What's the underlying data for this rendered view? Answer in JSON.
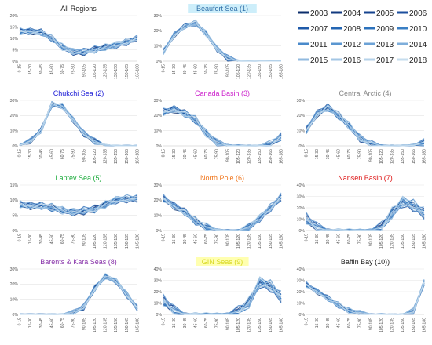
{
  "chart_data": {
    "type": "line",
    "x_categories": [
      "0-15",
      "15-30",
      "30-45",
      "45-60",
      "60-75",
      "75-90",
      "90-105",
      "105-120",
      "120-135",
      "135-150",
      "150-165",
      "165-180"
    ],
    "legend": {
      "placement": "top-right",
      "entries": [
        "2003",
        "2004",
        "2005",
        "2006",
        "2007",
        "2008",
        "2009",
        "2010",
        "2011",
        "2012",
        "2013",
        "2014",
        "2015",
        "2016",
        "2017",
        "2018"
      ]
    },
    "series_colors": [
      "#0b2d6b",
      "#12397f",
      "#17448f",
      "#1c4f9e",
      "#1f5aa9",
      "#2466b3",
      "#2c72bc",
      "#3a7fc4",
      "#4a8acb",
      "#5a96d0",
      "#6ca2d6",
      "#7eaedb",
      "#91badf",
      "#a3c6e4",
      "#b5d2e9",
      "#c6ddee"
    ],
    "panels": [
      {
        "title": "All Regions",
        "title_color": "#222222",
        "title_bg": "",
        "ymax": 20,
        "ticks": [
          0,
          5,
          10,
          15,
          20
        ],
        "base": [
          13,
          13,
          12.5,
          10,
          6,
          4,
          4,
          5,
          6,
          7,
          8.5,
          10
        ],
        "spread": 1.2
      },
      {
        "title": "Beaufort Sea (1)",
        "title_color": "#2e6ea8",
        "title_bg": "#cdeefa",
        "ymax": 30,
        "ticks": [
          0,
          10,
          20,
          30
        ],
        "base": [
          6,
          17,
          23,
          25,
          18,
          8,
          2,
          0.3,
          0,
          0,
          0,
          0
        ],
        "spread": 1.5
      },
      {
        "title": "Chukchi Sea (2)",
        "title_color": "#1a1ad6",
        "title_bg": "",
        "ymax": 30,
        "ticks": [
          0,
          10,
          20,
          30
        ],
        "base": [
          0.5,
          3,
          10,
          27,
          26,
          17,
          8,
          3,
          0.5,
          0,
          0,
          0
        ],
        "spread": 1.5
      },
      {
        "title": "Canada Basin (3)",
        "title_color": "#cc22cc",
        "title_bg": "",
        "ymax": 30,
        "ticks": [
          0,
          10,
          20,
          30
        ],
        "base": [
          22,
          24,
          21,
          17,
          8,
          2,
          0.3,
          0,
          0,
          0,
          1,
          6
        ],
        "spread": 2
      },
      {
        "title": "Central Arctic (4)",
        "title_color": "#888888",
        "title_bg": "",
        "ymax": 30,
        "ticks": [
          0,
          10,
          20,
          30
        ],
        "base": [
          10,
          21,
          25,
          20,
          13,
          5,
          1,
          0,
          0,
          0,
          0.5,
          2
        ],
        "spread": 2
      },
      {
        "title": "Laptev Sea (5)",
        "title_color": "#1aaa3a",
        "title_bg": "",
        "ymax": 15,
        "ticks": [
          0,
          5,
          10,
          15
        ],
        "base": [
          8.5,
          8,
          8,
          7.5,
          6.5,
          6,
          6.5,
          7,
          8.5,
          10,
          10.5,
          10.5
        ],
        "spread": 1
      },
      {
        "title": "North Pole (6)",
        "title_color": "#f07820",
        "title_bg": "",
        "ymax": 30,
        "ticks": [
          0,
          10,
          20,
          30
        ],
        "base": [
          21,
          16,
          12,
          6,
          2,
          0.5,
          0,
          0,
          2,
          8,
          15,
          22
        ],
        "spread": 2
      },
      {
        "title": "Nansen Basin (7)",
        "title_color": "#dd1111",
        "title_bg": "",
        "ymax": 40,
        "ticks": [
          0,
          10,
          20,
          30,
          40
        ],
        "base": [
          10,
          2,
          0,
          0,
          0,
          0,
          0,
          2,
          15,
          25,
          22,
          15
        ],
        "spread": 4
      },
      {
        "title": "Barents & Kara Seas (8)",
        "title_color": "#8833aa",
        "title_bg": "",
        "ymax": 30,
        "ticks": [
          0,
          10,
          20,
          30
        ],
        "base": [
          0,
          0,
          0,
          0,
          0,
          1,
          5,
          17,
          25,
          22,
          13,
          4
        ],
        "spread": 1.5
      },
      {
        "title": "GIN Seas (9)",
        "title_color": "#d8d822",
        "title_bg": "#ffffb0",
        "ymax": 40,
        "ticks": [
          0,
          10,
          20,
          30,
          40
        ],
        "base": [
          12,
          3,
          0,
          0,
          0,
          0,
          0,
          2,
          10,
          28,
          25,
          15
        ],
        "spread": 4
      },
      {
        "title": "Baffin Bay (10))",
        "title_color": "#222222",
        "title_bg": "",
        "ymax": 40,
        "ticks": [
          0,
          10,
          20,
          30,
          40
        ],
        "base": [
          26,
          20,
          14,
          8,
          3,
          1,
          0,
          0,
          0,
          0,
          3,
          28
        ],
        "spread": 2
      }
    ]
  }
}
